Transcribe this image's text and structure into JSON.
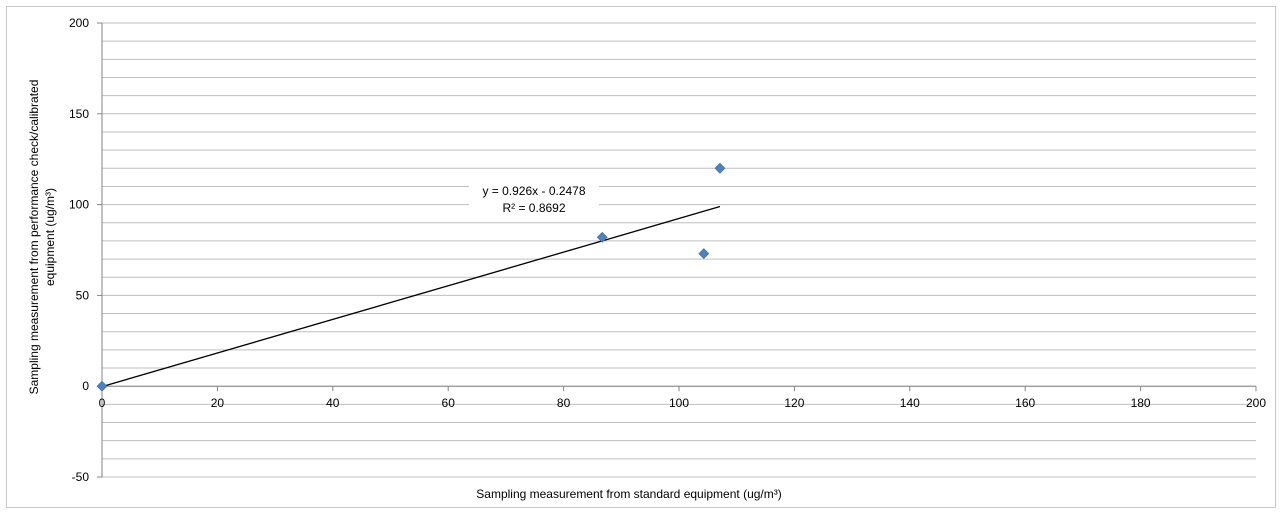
{
  "chart_data": {
    "type": "scatter",
    "title": "",
    "xlabel": "Sampling measurement from standard equipment  (ug/m³)",
    "ylabel_lines": [
      "Sampling measurement from performance check/calibrated",
      "equipment (ug/m³)"
    ],
    "xlim": [
      0,
      200
    ],
    "ylim": [
      -50,
      200
    ],
    "x_ticks": [
      0,
      20,
      40,
      60,
      80,
      100,
      120,
      140,
      160,
      180,
      200
    ],
    "y_ticks": [
      -50,
      0,
      50,
      100,
      150,
      200
    ],
    "y_minor_step": 10,
    "grid": true,
    "legend": "none",
    "marker": "diamond",
    "series": [
      {
        "points": [
          [
            0,
            0
          ],
          [
            86.7,
            82
          ],
          [
            104.3,
            73
          ],
          [
            107.1,
            120
          ]
        ]
      }
    ],
    "trendline": {
      "type": "linear",
      "slope": 0.926,
      "intercept": -0.2478,
      "x_range": [
        0,
        107.1
      ],
      "equation": "y = 0.926x - 0.2478",
      "r_squared": "R² = 0.8692"
    },
    "colors": {
      "marker": "#4f81bd",
      "grid": "#bfbfbf",
      "axis": "#868686",
      "trend": "#000000"
    }
  }
}
